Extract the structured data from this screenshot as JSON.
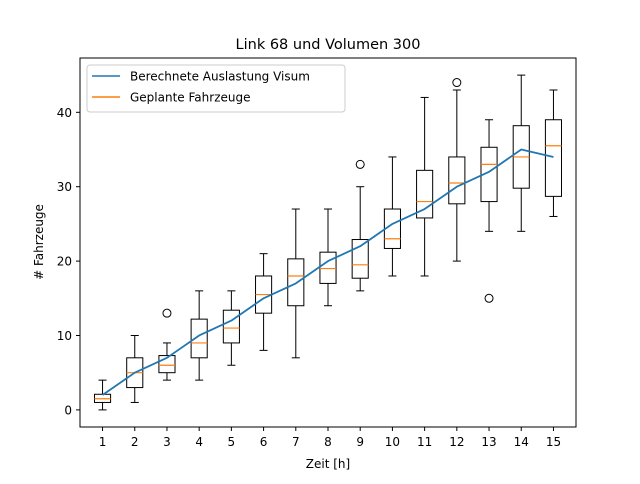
{
  "chart_data": {
    "type": "box",
    "title": "Link 68 und Volumen 300",
    "xlabel": "Zeit [h]",
    "ylabel": "# Fahrzeuge",
    "categories": [
      "1",
      "2",
      "3",
      "4",
      "5",
      "6",
      "7",
      "8",
      "9",
      "10",
      "11",
      "12",
      "13",
      "14",
      "15"
    ],
    "ylim": [
      -2.3,
      47.3
    ],
    "yticks": [
      0,
      10,
      20,
      30,
      40
    ],
    "legend": {
      "placement": "top-left",
      "entries": [
        "Berechnete Auslastung Visum",
        "Geplante Fahrzeuge"
      ]
    },
    "line_series": {
      "name": "Berechnete Auslastung Visum",
      "color": "#1f77b4",
      "values": [
        2,
        5,
        7,
        10,
        12,
        15,
        17,
        20,
        22,
        25,
        27,
        30,
        32,
        35,
        34
      ]
    },
    "boxes": {
      "name": "Geplante Fahrzeuge",
      "median_color": "#ff7f0e",
      "items": [
        {
          "x": "1",
          "whislo": 0,
          "q1": 1,
          "med": 1.5,
          "q3": 2.1,
          "whishi": 4,
          "fliers": []
        },
        {
          "x": "2",
          "whislo": 1,
          "q1": 3,
          "med": 5,
          "q3": 7,
          "whishi": 10,
          "fliers": []
        },
        {
          "x": "3",
          "whislo": 4,
          "q1": 5,
          "med": 6,
          "q3": 7.3,
          "whishi": 9,
          "fliers": [
            13
          ]
        },
        {
          "x": "4",
          "whislo": 4,
          "q1": 7,
          "med": 9,
          "q3": 12.2,
          "whishi": 16,
          "fliers": []
        },
        {
          "x": "5",
          "whislo": 6,
          "q1": 9,
          "med": 11,
          "q3": 13.4,
          "whishi": 16,
          "fliers": []
        },
        {
          "x": "6",
          "whislo": 8,
          "q1": 13,
          "med": 15.5,
          "q3": 18,
          "whishi": 21,
          "fliers": []
        },
        {
          "x": "7",
          "whislo": 7,
          "q1": 14,
          "med": 18,
          "q3": 20.3,
          "whishi": 27,
          "fliers": []
        },
        {
          "x": "8",
          "whislo": 14,
          "q1": 17,
          "med": 19,
          "q3": 21.2,
          "whishi": 27,
          "fliers": []
        },
        {
          "x": "9",
          "whislo": 16,
          "q1": 17.7,
          "med": 19.5,
          "q3": 22.9,
          "whishi": 30,
          "fliers": [
            33
          ]
        },
        {
          "x": "10",
          "whislo": 18,
          "q1": 21.7,
          "med": 23,
          "q3": 27,
          "whishi": 34,
          "fliers": []
        },
        {
          "x": "11",
          "whislo": 18,
          "q1": 25.8,
          "med": 28,
          "q3": 32.2,
          "whishi": 42,
          "fliers": []
        },
        {
          "x": "12",
          "whislo": 20,
          "q1": 27.7,
          "med": 30.5,
          "q3": 34,
          "whishi": 43,
          "fliers": [
            44
          ]
        },
        {
          "x": "13",
          "whislo": 24,
          "q1": 28,
          "med": 33,
          "q3": 35.3,
          "whishi": 39,
          "fliers": [
            15
          ]
        },
        {
          "x": "14",
          "whislo": 24,
          "q1": 29.8,
          "med": 34,
          "q3": 38.2,
          "whishi": 45,
          "fliers": []
        },
        {
          "x": "15",
          "whislo": 26,
          "q1": 28.7,
          "med": 35.5,
          "q3": 39,
          "whishi": 43,
          "fliers": []
        }
      ]
    },
    "grid": false
  }
}
